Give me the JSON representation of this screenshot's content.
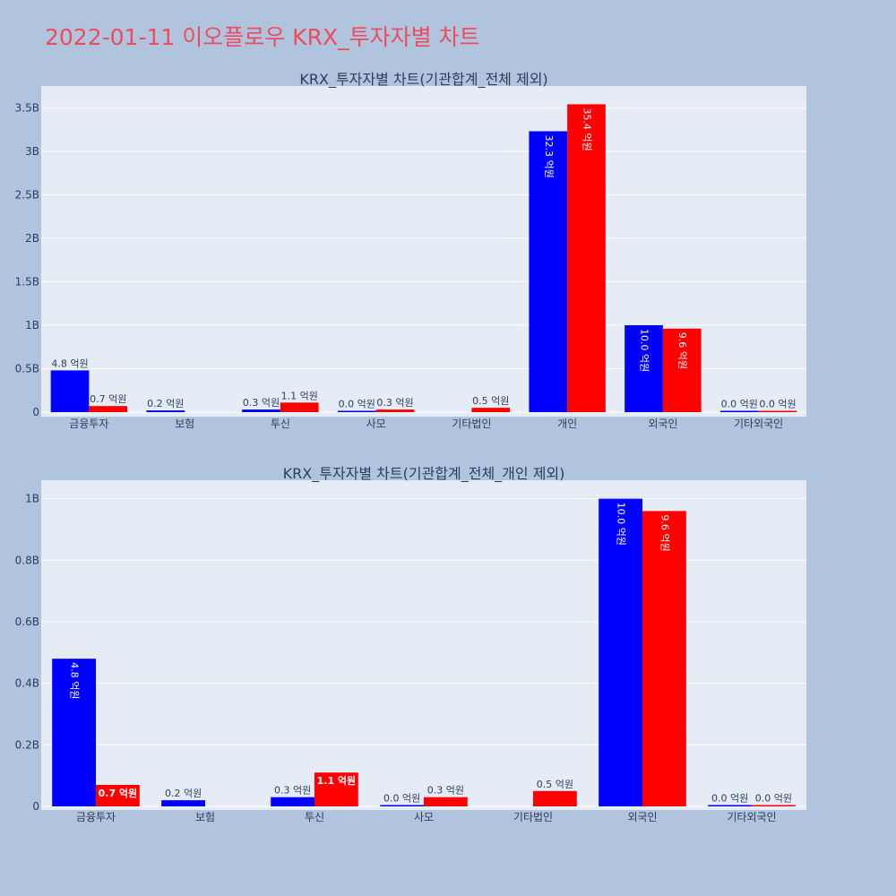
{
  "page_title": "2022-01-11 이오플로우 KRX_투자자별 차트",
  "colors": {
    "background": "#b0c4de",
    "plot_bg": "#e5ecf6",
    "title": "#ef4b5e",
    "series_a": "#0000ff",
    "series_b": "#ff0000",
    "text": "#2a3f5f"
  },
  "chart_data": [
    {
      "type": "bar",
      "title": "KRX_투자자별 차트(기관합계_전체 제외)",
      "xlabel": "",
      "ylabel": "",
      "categories": [
        "금융투자",
        "보험",
        "투신",
        "사모",
        "기타법인",
        "개인",
        "외국인",
        "기타외국인"
      ],
      "ylim": [
        0,
        3750000000
      ],
      "yticks": [
        0,
        500000000,
        1000000000,
        1500000000,
        2000000000,
        2500000000,
        3000000000,
        3500000000
      ],
      "ytick_labels": [
        "0",
        "0.5B",
        "1B",
        "1.5B",
        "2B",
        "2.5B",
        "3B",
        "3.5B"
      ],
      "grid": true,
      "series": [
        {
          "color": "#0000ff",
          "values": [
            480000000,
            20000000,
            30000000,
            1000000,
            null,
            3230000000,
            1000000000,
            1000000
          ],
          "labels": [
            "4.8 억원",
            "0.2 억원",
            "0.3 억원",
            "0.0 억원",
            "",
            "32.3 억원",
            "10.0 억원",
            "0.0 억원"
          ]
        },
        {
          "color": "#ff0000",
          "values": [
            70000000,
            null,
            110000000,
            30000000,
            50000000,
            3540000000,
            960000000,
            1000000
          ],
          "labels": [
            "0.7 억원",
            "",
            "1.1 억원",
            "0.3 억원",
            "0.5 억원",
            "35.4 억원",
            "9.6 억원",
            "0.0 억원"
          ]
        }
      ]
    },
    {
      "type": "bar",
      "title": "KRX_투자자별 차트(기관합계_전체_개인 제외)",
      "xlabel": "",
      "ylabel": "",
      "categories": [
        "금융투자",
        "보험",
        "투신",
        "사모",
        "기타법인",
        "외국인",
        "기타외국인"
      ],
      "ylim": [
        0,
        1060000000
      ],
      "yticks": [
        0,
        200000000,
        400000000,
        600000000,
        800000000,
        1000000000
      ],
      "ytick_labels": [
        "0",
        "0.2B",
        "0.4B",
        "0.6B",
        "0.8B",
        "1B"
      ],
      "grid": true,
      "series": [
        {
          "color": "#0000ff",
          "values": [
            480000000,
            20000000,
            30000000,
            1000000,
            null,
            1000000000,
            1000000
          ],
          "labels": [
            "4.8 억원",
            "0.2 억원",
            "0.3 억원",
            "0.0 억원",
            "",
            "10.0 억원",
            "0.0 억원"
          ]
        },
        {
          "color": "#ff0000",
          "values": [
            70000000,
            null,
            110000000,
            30000000,
            50000000,
            960000000,
            1000000
          ],
          "labels": [
            "0.7 억원",
            "",
            "1.1 억원",
            "0.3 억원",
            "0.5 억원",
            "9.6 억원",
            "0.0 억원"
          ]
        }
      ]
    }
  ]
}
